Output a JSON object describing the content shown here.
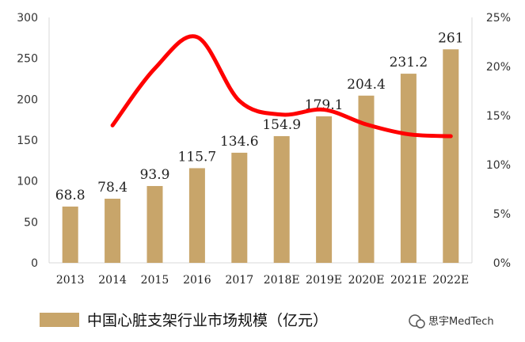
{
  "chart_data": {
    "type": "bar",
    "categories": [
      "2013",
      "2014",
      "2015",
      "2016",
      "2017",
      "2018E",
      "2019E",
      "2020E",
      "2021E",
      "2022E"
    ],
    "series": [
      {
        "name": "中国心脏支架行业市场规模（亿元）",
        "type": "bar",
        "axis": "left",
        "values": [
          68.8,
          78.4,
          93.9,
          115.7,
          134.6,
          154.9,
          179.1,
          204.4,
          231.2,
          261
        ],
        "labels": [
          "68.8",
          "78.4",
          "93.9",
          "115.7",
          "134.6",
          "154.9",
          "179.1",
          "204.4",
          "231.2",
          "261"
        ],
        "color": "#C8A56A"
      },
      {
        "type": "line",
        "axis": "right",
        "x": [
          "2014",
          "2015",
          "2016",
          "2017",
          "2018E",
          "2019E",
          "2020E",
          "2021E",
          "2022E"
        ],
        "values": [
          0.14,
          0.198,
          0.23,
          0.165,
          0.151,
          0.156,
          0.141,
          0.131,
          0.129
        ],
        "color": "#FF0000"
      }
    ],
    "yAxisLeft": {
      "ylim": [
        0,
        300
      ],
      "ticks": [
        "0",
        "50",
        "100",
        "150",
        "200",
        "250",
        "300"
      ]
    },
    "yAxisRight": {
      "ylim": [
        0,
        0.25
      ],
      "ticks": [
        "0%",
        "5%",
        "10%",
        "15%",
        "20%",
        "25%"
      ]
    },
    "grid": false,
    "legend": {
      "position": "bottom-left",
      "label": "中国心脏支架行业市场规模（亿元）"
    }
  },
  "watermark": {
    "text": "思宇MedTech"
  },
  "colors": {
    "bar": "#C8A56A",
    "line": "#FF0000",
    "axis": "#D9D9D9"
  }
}
